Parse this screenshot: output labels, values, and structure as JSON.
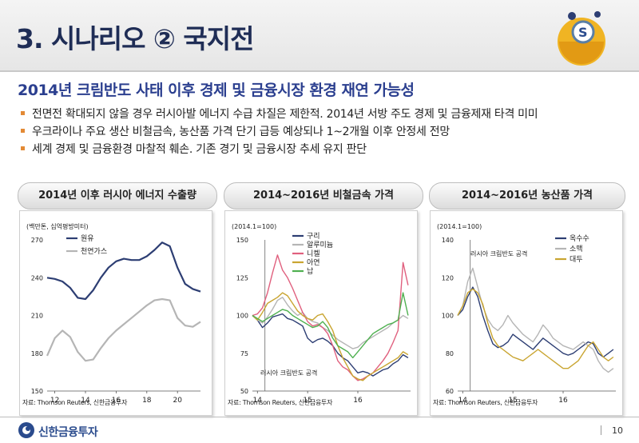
{
  "header": {
    "title": "3. 시나리오 ② 국지전"
  },
  "subtitle": "2014년 크림반도 사태 이후 경제 및 금융시장 환경 재연 가능성",
  "bullets": [
    "전면전 확대되지 않을 경우 러시아발 에너지 수급 차질은 제한적. 2014년 서방 주도 경제 및 금융제재 타격 미미",
    "우크라이나 주요 생산 비철금속, 농산품 가격 단기 급등 예상되나 1~2개월 이후 안정세 전망",
    "세계 경제 및 금융환경 마찰적 훼손. 기존 경기 및 금융시장 추세 유지 판단"
  ],
  "footer": {
    "brand": "신한금융투자",
    "page": "10"
  },
  "colors": {
    "navy": "#2d3e73",
    "gray": "#b5b5b5",
    "pink": "#e0607e",
    "gold": "#c9a531",
    "green": "#4fb050",
    "olive": "#9da33d"
  },
  "chart_data": [
    {
      "type": "line",
      "title": "2014년 이후 러시아 에너지 수출량",
      "unit_label": "(백만톤, 십억평방미터)",
      "x": [
        11.5,
        12,
        12.5,
        13,
        13.5,
        14,
        14.5,
        15,
        15.5,
        16,
        16.5,
        17,
        17.5,
        18,
        18.5,
        19,
        19.5,
        20,
        20.5,
        21,
        21.5
      ],
      "xlim": [
        11.5,
        21.5
      ],
      "xticks": [
        "12",
        "14",
        "16",
        "18",
        "20"
      ],
      "xtick_values": [
        12,
        14,
        16,
        18,
        20
      ],
      "ylim": [
        150,
        270
      ],
      "yticks": [
        "150",
        "180",
        "210",
        "240",
        "270"
      ],
      "ytick_values": [
        150,
        180,
        210,
        240,
        270
      ],
      "series": [
        {
          "name": "원유",
          "color": "#2d3e73",
          "values": [
            240,
            239,
            237,
            232,
            224,
            223,
            230,
            240,
            248,
            253,
            255,
            254,
            254,
            257,
            262,
            268,
            265,
            248,
            235,
            231,
            229
          ]
        },
        {
          "name": "천연가스",
          "color": "#b5b5b5",
          "values": [
            178,
            192,
            198,
            193,
            181,
            174,
            175,
            184,
            192,
            198,
            203,
            208,
            213,
            218,
            222,
            223,
            222,
            208,
            202,
            201,
            205
          ]
        }
      ],
      "source": "자료: Thomson Reuters, 신한금융투자"
    },
    {
      "type": "line",
      "title": "2014~2016년 비철금속 가격",
      "unit_label": "(2014.1=100)",
      "x": [
        13.9,
        14.0,
        14.1,
        14.2,
        14.3,
        14.4,
        14.5,
        14.6,
        14.7,
        14.8,
        14.9,
        15.0,
        15.1,
        15.2,
        15.3,
        15.4,
        15.5,
        15.6,
        15.7,
        15.8,
        15.9,
        16.0,
        16.1,
        16.2,
        16.3,
        16.4,
        16.5,
        16.6,
        16.7,
        16.8,
        16.9,
        17.0
      ],
      "xlim": [
        13.9,
        17.05
      ],
      "xticks": [
        "14",
        "15",
        "16"
      ],
      "xtick_values": [
        14,
        15,
        16
      ],
      "ylim": [
        50,
        150
      ],
      "yticks": [
        "50",
        "75",
        "100",
        "125",
        "150"
      ],
      "ytick_values": [
        50,
        75,
        100,
        125,
        150
      ],
      "annotation": "러시아 크림반도 공격",
      "annotation_x": 14.15,
      "series": [
        {
          "name": "구리",
          "color": "#2d3e73",
          "values": [
            100,
            97,
            92,
            95,
            99,
            100,
            101,
            98,
            97,
            95,
            93,
            85,
            82,
            84,
            85,
            83,
            80,
            75,
            72,
            70,
            66,
            62,
            63,
            62,
            60,
            62,
            64,
            65,
            68,
            70,
            74,
            72
          ]
        },
        {
          "name": "알루미늄",
          "color": "#b5b5b5",
          "values": [
            100,
            97,
            95,
            99,
            104,
            110,
            112,
            107,
            103,
            100,
            102,
            98,
            96,
            95,
            92,
            90,
            87,
            84,
            82,
            80,
            78,
            79,
            82,
            84,
            86,
            88,
            90,
            92,
            95,
            97,
            100,
            98
          ]
        },
        {
          "name": "니켈",
          "color": "#e0607e",
          "values": [
            100,
            101,
            105,
            115,
            128,
            140,
            130,
            125,
            118,
            110,
            102,
            96,
            93,
            94,
            92,
            88,
            80,
            70,
            66,
            64,
            60,
            57,
            58,
            60,
            62,
            66,
            70,
            75,
            82,
            90,
            135,
            120
          ]
        },
        {
          "name": "아연",
          "color": "#c9a531",
          "values": [
            100,
            97,
            102,
            108,
            110,
            112,
            115,
            113,
            108,
            103,
            100,
            98,
            97,
            100,
            101,
            96,
            90,
            80,
            72,
            66,
            60,
            58,
            57,
            60,
            62,
            64,
            66,
            68,
            70,
            72,
            76,
            74
          ]
        },
        {
          "name": "납",
          "color": "#4fb050",
          "values": [
            100,
            98,
            96,
            98,
            100,
            102,
            104,
            103,
            100,
            98,
            96,
            94,
            92,
            93,
            96,
            92,
            85,
            80,
            78,
            76,
            72,
            76,
            80,
            84,
            88,
            90,
            92,
            94,
            95,
            97,
            115,
            100
          ]
        }
      ],
      "source": "자료: Thomson Reuters, 신한금융투자"
    },
    {
      "type": "line",
      "title": "2014~2016년 농산품 가격",
      "unit_label": "(2014.1=100)",
      "x": [
        13.9,
        14.0,
        14.1,
        14.2,
        14.3,
        14.4,
        14.5,
        14.6,
        14.7,
        14.8,
        14.9,
        15.0,
        15.1,
        15.2,
        15.3,
        15.4,
        15.5,
        15.6,
        15.7,
        15.8,
        15.9,
        16.0,
        16.1,
        16.2,
        16.3,
        16.4,
        16.5,
        16.6,
        16.7,
        16.8,
        16.9,
        17.0
      ],
      "xlim": [
        13.9,
        17.05
      ],
      "xticks": [
        "14",
        "15",
        "16"
      ],
      "xtick_values": [
        14,
        15,
        16
      ],
      "ylim": [
        60,
        140
      ],
      "yticks": [
        "60",
        "80",
        "100",
        "120",
        "140"
      ],
      "ytick_values": [
        60,
        80,
        100,
        120,
        140
      ],
      "annotation": "러시아 크림반도 공격",
      "annotation_x": 14.15,
      "series": [
        {
          "name": "옥수수",
          "color": "#2d3e73",
          "values": [
            100,
            103,
            110,
            115,
            110,
            100,
            92,
            85,
            83,
            84,
            86,
            90,
            88,
            86,
            84,
            82,
            85,
            88,
            86,
            84,
            82,
            80,
            79,
            80,
            82,
            84,
            86,
            85,
            80,
            78,
            80,
            82
          ]
        },
        {
          "name": "소맥",
          "color": "#b5b5b5",
          "values": [
            100,
            105,
            118,
            125,
            115,
            105,
            98,
            94,
            92,
            95,
            100,
            96,
            93,
            90,
            88,
            86,
            90,
            95,
            92,
            88,
            86,
            84,
            83,
            82,
            84,
            86,
            84,
            82,
            76,
            72,
            70,
            72
          ]
        },
        {
          "name": "대두",
          "color": "#c9a531",
          "values": [
            100,
            105,
            112,
            114,
            112,
            106,
            96,
            88,
            84,
            82,
            80,
            78,
            77,
            76,
            78,
            80,
            82,
            80,
            78,
            76,
            74,
            72,
            72,
            74,
            76,
            80,
            84,
            86,
            82,
            78,
            76,
            78
          ]
        }
      ],
      "source": "자료: Thomson Reuters, 신한금융투자"
    }
  ]
}
